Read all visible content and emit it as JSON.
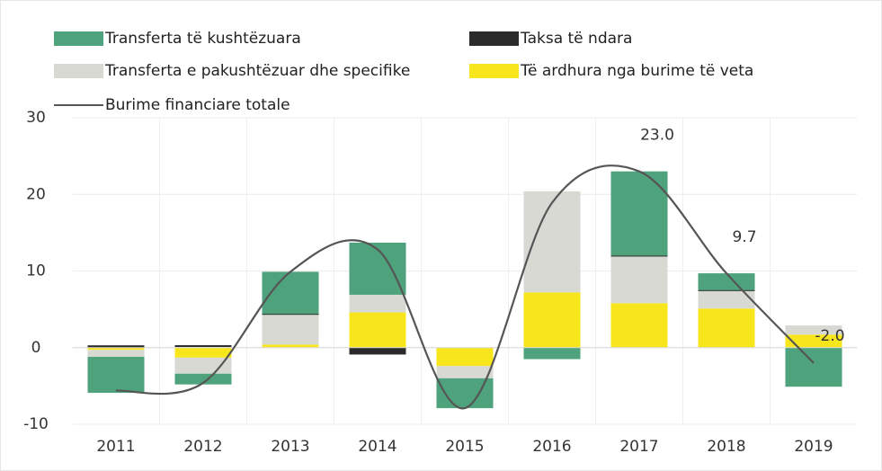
{
  "chart_data": {
    "type": "bar",
    "categories": [
      "2011",
      "2012",
      "2013",
      "2014",
      "2015",
      "2016",
      "2017",
      "2018",
      "2019"
    ],
    "series": [
      {
        "name": "Transferta të kushtëzuara",
        "color": "#4ea27c",
        "values": [
          -4.7,
          -1.4,
          5.5,
          6.8,
          -3.9,
          -1.5,
          11.0,
          2.2,
          -5.1
        ]
      },
      {
        "name": "Taksa të ndara",
        "color": "#2b2b2b",
        "values": [
          0.3,
          0.2,
          0.1,
          -0.9,
          0,
          0,
          0.1,
          0.1,
          0
        ]
      },
      {
        "name": "Transferta e pakushtëzuar dhe specifike",
        "color": "#d9d9d4",
        "values": [
          -0.9,
          -2.1,
          3.9,
          2.3,
          -1.6,
          13.2,
          6.1,
          2.3,
          1.2
        ]
      },
      {
        "name": "Të ardhura nga burime të veta",
        "color": "#f7e61c",
        "values": [
          -0.3,
          -1.3,
          0.4,
          4.6,
          -2.4,
          7.2,
          5.8,
          5.1,
          1.7
        ]
      },
      {
        "name": "Burime financiare totale",
        "type": "line",
        "color": "#555555",
        "values": [
          -5.6,
          -4.6,
          9.9,
          12.8,
          -7.9,
          18.9,
          23.0,
          9.7,
          -2.0
        ],
        "value_labels": [
          null,
          null,
          null,
          null,
          null,
          null,
          "23.0",
          "9.7",
          "-2.0"
        ]
      }
    ],
    "ylim": [
      -10,
      30
    ],
    "yticks": [
      -10,
      0,
      10,
      20,
      30
    ],
    "grid": true,
    "stacked": true
  }
}
